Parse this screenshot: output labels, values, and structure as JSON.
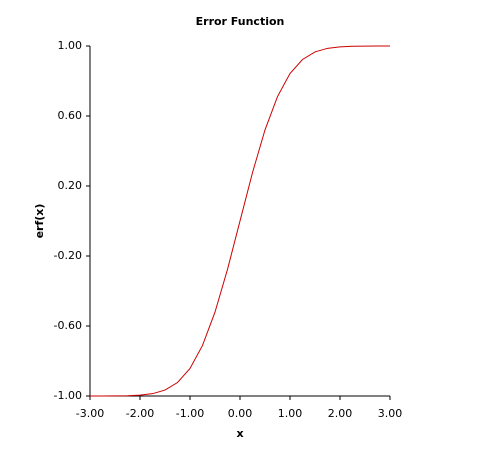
{
  "chart_data": {
    "type": "line",
    "title": "Error Function",
    "x_label": "x",
    "y_label": "erf(x)",
    "x": [
      -3,
      -2.75,
      -2.5,
      -2.25,
      -2,
      -1.75,
      -1.5,
      -1.25,
      -1,
      -0.75,
      -0.5,
      -0.25,
      0,
      0.25,
      0.5,
      0.75,
      1,
      1.25,
      1.5,
      1.75,
      2,
      2.25,
      2.5,
      2.75,
      3
    ],
    "series": [
      {
        "color": "#cc0000",
        "values": [
          -1.0,
          -0.9999,
          -0.9996,
          -0.9985,
          -0.9953,
          -0.9867,
          -0.9661,
          -0.9229,
          -0.8427,
          -0.7112,
          -0.5205,
          -0.2763,
          0,
          0.2763,
          0.5205,
          0.7112,
          0.8427,
          0.9229,
          0.9661,
          0.9867,
          0.9953,
          0.9985,
          0.9996,
          0.9999,
          1.0
        ]
      }
    ],
    "xlim": [
      -3,
      3
    ],
    "ylim": [
      -1,
      1
    ],
    "xticks": [
      {
        "value": -3,
        "label": "-3.00"
      },
      {
        "value": -2,
        "label": "-2.00"
      },
      {
        "value": -1,
        "label": "-1.00"
      },
      {
        "value": 0,
        "label": "0.00"
      },
      {
        "value": 1,
        "label": "1.00"
      },
      {
        "value": 2,
        "label": "2.00"
      },
      {
        "value": 3,
        "label": "3.00"
      }
    ],
    "yticks": [
      {
        "value": -1,
        "label": "-1.00"
      },
      {
        "value": -0.6,
        "label": "-0.60"
      },
      {
        "value": -0.2,
        "label": "-0.20"
      },
      {
        "value": 0.2,
        "label": "0.20"
      },
      {
        "value": 0.6,
        "label": "0.60"
      },
      {
        "value": 1,
        "label": "1.00"
      }
    ]
  }
}
